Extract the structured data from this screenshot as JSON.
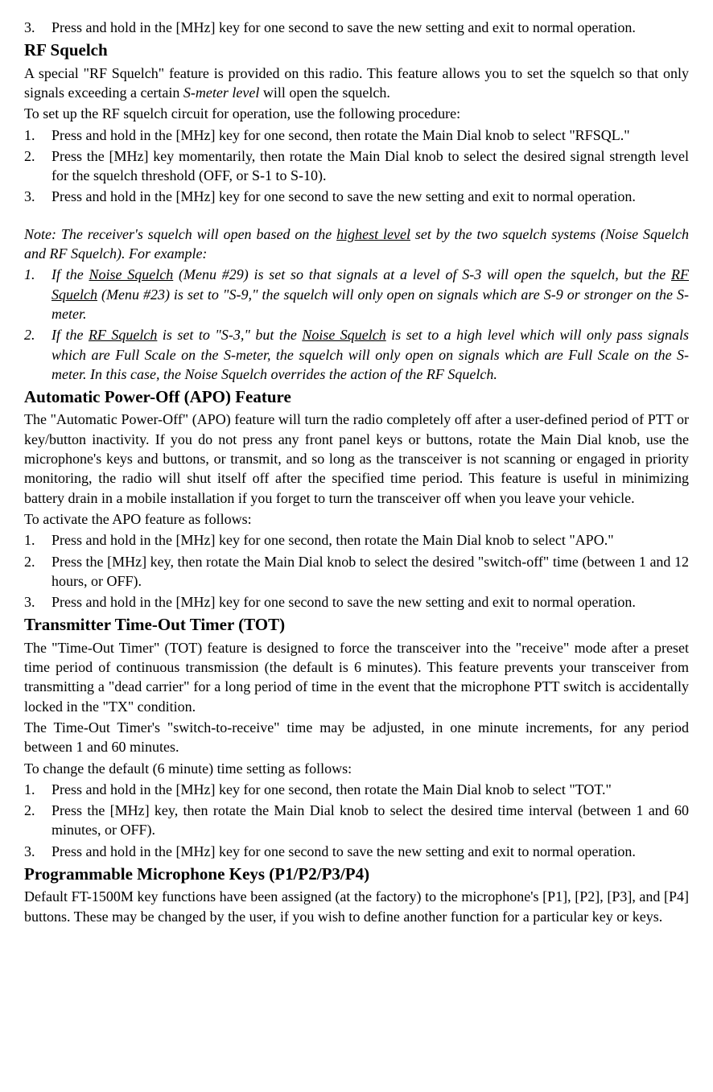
{
  "intro_step3": "Press and hold in the [MHz] key for one second to save the new setting and exit to normal operation.",
  "rf_squelch": {
    "heading": "RF Squelch",
    "intro_part1": "A special \"RF Squelch\" feature is provided on this radio. This feature allows you to set the squelch so that only signals exceeding a certain ",
    "intro_italic": "S-meter level",
    "intro_part2": " will open the squelch.",
    "procedure_label": "To set up the RF squelch circuit for operation, use the following procedure:",
    "steps": [
      "Press and hold in the [MHz] key for one second, then rotate the Main Dial knob to select \"RFSQL.\"",
      "Press the [MHz] key momentarily, then rotate the Main Dial knob to select the desired signal strength level for the squelch threshold (OFF, or S-1 to S-10).",
      "Press and hold in the [MHz] key for one second to save the new setting and exit to normal operation."
    ],
    "note_part1": "Note: The receiver's squelch will open based on the ",
    "note_underline1": "highest level",
    "note_part2": " set by the two squelch systems (Noise Squelch and RF Squelch). For example:",
    "note_step1_a": "If the ",
    "note_step1_u1": "Noise Squelch",
    "note_step1_b": " (Menu #29) is set so that signals at a level of S-3 will open the squelch, but the ",
    "note_step1_u2": "RF Squelch",
    "note_step1_c": " (Menu #23) is set to \"S-9,\" the squelch will only open on signals which are S-9 or stronger on the S-meter.",
    "note_step2_a": "If the ",
    "note_step2_u1": "RF Squelch",
    "note_step2_b": " is set to \"S-3,\" but the ",
    "note_step2_u2": "Noise Squelch",
    "note_step2_c": " is set to a high level which will only pass signals which are Full Scale on the S-meter, the squelch will only open on signals which are Full Scale on the S-meter. In this case, the Noise Squelch overrides the action of the RF Squelch."
  },
  "apo": {
    "heading": "Automatic Power-Off (APO) Feature",
    "intro": "The \"Automatic Power-Off\" (APO) feature will turn the radio completely off after a user-defined period of PTT or key/button inactivity. If you do not press any front panel keys or buttons, rotate the Main Dial knob, use the microphone's keys and buttons, or transmit, and so long as the transceiver is not scanning or engaged in priority monitoring, the radio will shut itself off after the specified time period. This feature is useful in minimizing battery drain in a mobile installation if you forget to turn the transceiver off when you leave your vehicle.",
    "procedure_label": "To activate the APO feature as follows:",
    "steps": [
      "Press and hold in the [MHz] key for one second, then rotate the Main Dial knob to select \"APO.\"",
      "Press the [MHz] key, then rotate the Main Dial knob to select the desired \"switch-off\" time (between 1 and 12 hours, or OFF).",
      "Press and hold in the [MHz] key for one second to save the new setting and exit to normal operation."
    ]
  },
  "tot": {
    "heading": "Transmitter Time-Out Timer (TOT)",
    "intro1": "The \"Time-Out Timer\" (TOT) feature is designed to force the transceiver into the \"receive\" mode after a preset time period of continuous transmission (the default is 6 minutes). This feature prevents your transceiver from transmitting a \"dead carrier\" for a long period of time in the event that the microphone PTT switch is accidentally locked in the \"TX\" condition.",
    "intro2": "The Time-Out Timer's \"switch-to-receive\" time may be adjusted, in one minute increments, for any period between 1 and 60 minutes.",
    "procedure_label": "To change the default (6 minute) time setting as follows:",
    "steps": [
      "Press and hold in the [MHz] key for one second, then rotate the Main Dial knob to select \"TOT.\"",
      "Press the [MHz] key, then rotate the Main Dial knob to select the desired time interval (between 1 and 60 minutes, or OFF).",
      "Press and hold in the [MHz] key for one second to save the new setting and exit to normal operation."
    ]
  },
  "pkeys": {
    "heading": "Programmable Microphone Keys (P1/P2/P3/P4)",
    "intro": "Default FT-1500M key functions have been assigned (at the factory) to the  microphone's [P1], [P2], [P3], and [P4] buttons. These may be changed by the user, if you wish to define another function for a particular key or keys."
  }
}
